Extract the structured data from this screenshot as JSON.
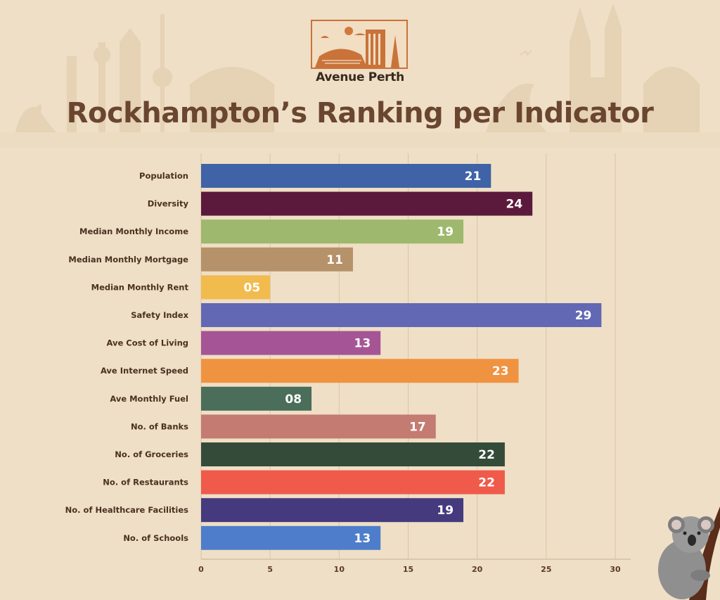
{
  "brand": {
    "name": "Avenue Perth"
  },
  "chart_data": {
    "type": "bar",
    "orientation": "horizontal",
    "title": "Rockhampton’s Ranking per Indicator",
    "categories": [
      "Population",
      "Diversity",
      "Median Monthly Income",
      "Median Monthly Mortgage",
      "Median Monthly Rent",
      "Safety Index",
      "Ave Cost of Living",
      "Ave Internet Speed",
      "Ave Monthly Fuel",
      "No. of Banks",
      "No. of Groceries",
      "No. of Restaurants",
      "No. of Healthcare Facilities",
      "No. of Schools"
    ],
    "values": [
      21,
      24,
      19,
      11,
      5,
      29,
      13,
      23,
      8,
      17,
      22,
      22,
      19,
      13
    ],
    "value_labels": [
      "21",
      "24",
      "19",
      "11",
      "05",
      "29",
      "13",
      "23",
      "08",
      "17",
      "22",
      "22",
      "19",
      "13"
    ],
    "colors": [
      "#3f63a6",
      "#5b1a3c",
      "#9eb86d",
      "#b6926a",
      "#f2bb4e",
      "#6268b4",
      "#a55596",
      "#f09341",
      "#4a6e5a",
      "#c47b72",
      "#344b3a",
      "#ef5a4b",
      "#453a7e",
      "#4e7ecb"
    ],
    "xlim": [
      0,
      30
    ],
    "xticks": [
      0,
      5,
      10,
      15,
      20,
      25,
      30
    ],
    "grid": true,
    "xlabel": "",
    "ylabel": ""
  }
}
